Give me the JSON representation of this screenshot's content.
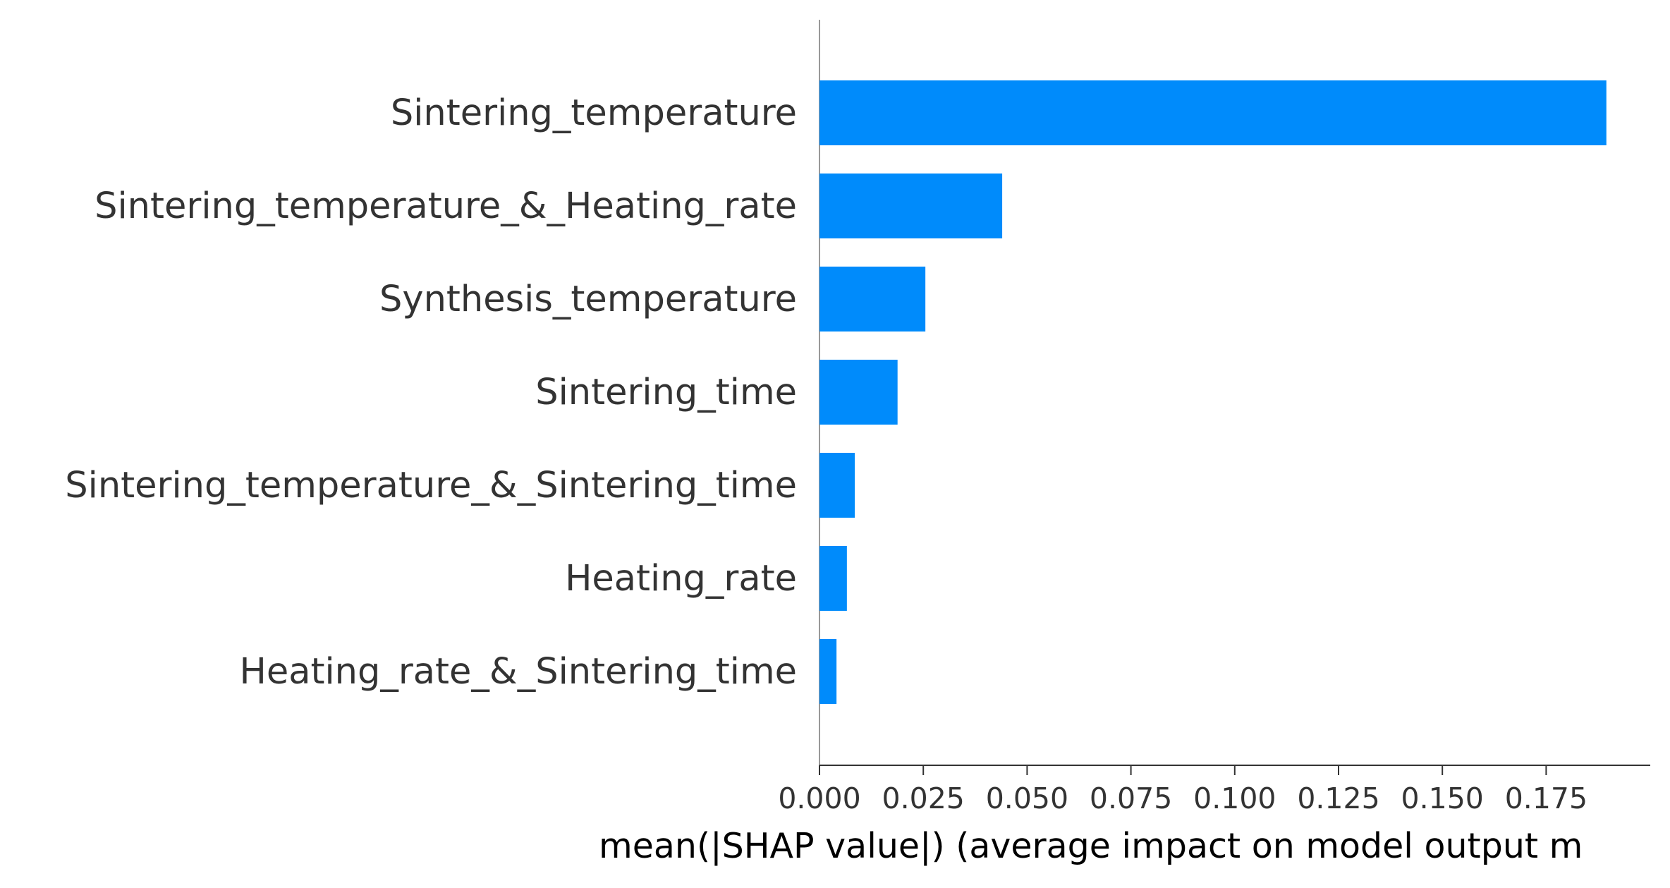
{
  "chart_data": {
    "type": "bar",
    "orientation": "horizontal",
    "categories": [
      "Sintering_temperature",
      "Sintering_temperature_&_Heating_rate",
      "Synthesis_temperature",
      "Sintering_time",
      "Sintering_temperature_&_Sintering_time",
      "Heating_rate",
      "Heating_rate_&_Sintering_time"
    ],
    "values": [
      0.1895,
      0.044,
      0.0255,
      0.0188,
      0.0085,
      0.0066,
      0.0041
    ],
    "xlabel": "mean(|SHAP value|) (average impact on model output m",
    "xlim": [
      0.0,
      0.199
    ],
    "xticks": [
      "0.000",
      "0.025",
      "0.050",
      "0.075",
      "0.100",
      "0.125",
      "0.150",
      "0.175"
    ],
    "bar_color": "#008bfb",
    "grid": false,
    "legend": "none"
  }
}
